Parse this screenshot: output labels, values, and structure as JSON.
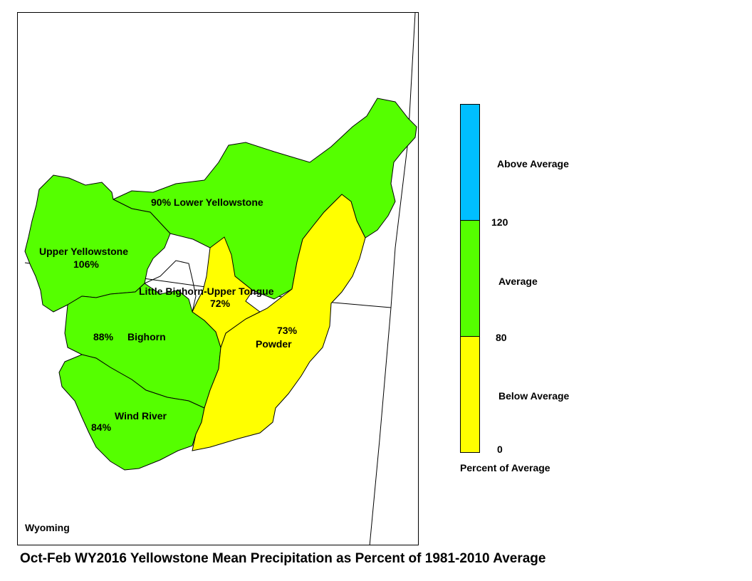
{
  "map": {
    "state_label": "Wyoming",
    "regions": [
      {
        "name": "Lower Yellowstone",
        "label": "90% Lower Yellowstone",
        "percent": 90,
        "category": "Average"
      },
      {
        "name": "Upper Yellowstone",
        "label": "Upper Yellowstone",
        "value_label": "106%",
        "percent": 106,
        "category": "Average"
      },
      {
        "name": "Little Bighorn-Upper Tongue",
        "label": "Little Bighorn-Upper Tongue",
        "value_label": "72%",
        "percent": 72,
        "category": "Below Average"
      },
      {
        "name": "Powder",
        "label": "Powder",
        "value_label": "73%",
        "percent": 73,
        "category": "Below Average"
      },
      {
        "name": "Bighorn",
        "label": "Bighorn",
        "value_label": "88%",
        "percent": 88,
        "category": "Average"
      },
      {
        "name": "Wind River",
        "label": "Wind River",
        "value_label": "84%",
        "percent": 84,
        "category": "Average"
      }
    ]
  },
  "legend": {
    "title": "Percent of Average",
    "classes": [
      {
        "label": "Above Average",
        "color": "#00BFFF"
      },
      {
        "label": "Average",
        "color": "#55FF00"
      },
      {
        "label": "Below Average",
        "color": "#FFFF00"
      }
    ],
    "breaks": [
      "120",
      "80",
      "0"
    ]
  },
  "colors": {
    "average": "#55FF00",
    "below": "#FFFF00",
    "above": "#00BFFF",
    "outline": "#000000"
  },
  "title": "Oct-Feb WY2016 Yellowstone Mean Precipitation as Percent of 1981-2010 Average"
}
